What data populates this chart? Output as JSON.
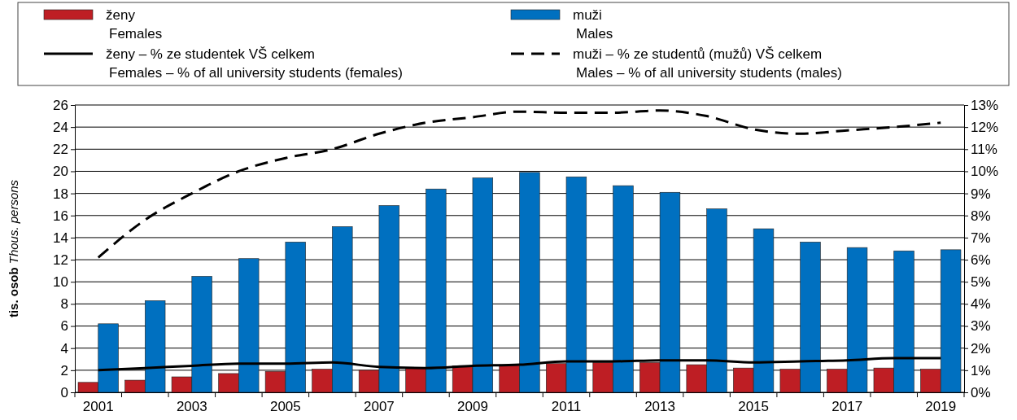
{
  "chart_data": {
    "type": "bar",
    "ylabel": "tis. osob\nThous. persons",
    "categories": [
      "2001",
      null,
      "2003",
      null,
      "2005",
      null,
      "2007",
      null,
      "2009",
      null,
      "2011",
      null,
      "2013",
      null,
      "2015",
      null,
      "2017",
      null,
      "2019"
    ],
    "series": [
      {
        "name": "ženy\nFemales",
        "color": "#be1e24",
        "values": [
          0.9,
          1.1,
          1.4,
          1.7,
          1.9,
          2.1,
          2.0,
          2.2,
          2.4,
          2.5,
          2.6,
          2.7,
          2.7,
          2.5,
          2.2,
          2.1,
          2.1,
          2.2,
          2.1
        ]
      },
      {
        "name": "muži\nMales",
        "color": "#0070c0",
        "values": [
          6.2,
          8.3,
          10.5,
          12.1,
          13.6,
          15.0,
          16.9,
          18.4,
          19.4,
          19.9,
          19.5,
          18.7,
          18.1,
          16.6,
          14.8,
          13.6,
          13.1,
          12.8,
          12.9
        ]
      },
      {
        "name": "ženy – % ze studentek VŠ celkem\nFemales – % of all university students (females)",
        "type": "line",
        "axis": "y2",
        "color": "#000000",
        "line_style": "solid",
        "values": [
          1.0,
          1.1,
          1.2,
          1.3,
          1.3,
          1.35,
          1.15,
          1.1,
          1.2,
          1.25,
          1.4,
          1.4,
          1.45,
          1.45,
          1.35,
          1.4,
          1.45,
          1.55,
          1.55
        ]
      },
      {
        "name": "muži – % ze studentů (mužů) VŠ celkem\nMales – % of all university students (males)",
        "type": "line",
        "axis": "y2",
        "color": "#000000",
        "line_style": "dashed",
        "values": [
          6.1,
          7.8,
          9.0,
          10.0,
          10.6,
          11.0,
          11.7,
          12.2,
          12.45,
          12.7,
          12.65,
          12.65,
          12.75,
          12.5,
          11.9,
          11.7,
          11.85,
          12.0,
          12.2
        ]
      }
    ],
    "ylim": [
      0,
      26
    ],
    "yticks": [
      0,
      2,
      4,
      6,
      8,
      10,
      12,
      14,
      16,
      18,
      20,
      22,
      24,
      26
    ],
    "y2lim": [
      0,
      13
    ],
    "y2ticks": [
      {
        "value": 0,
        "label": "0%"
      },
      {
        "value": 1,
        "label": "1%"
      },
      {
        "value": 2,
        "label": "2%"
      },
      {
        "value": 3,
        "label": "3%"
      },
      {
        "value": 4,
        "label": "4%"
      },
      {
        "value": 5,
        "label": "5%"
      },
      {
        "value": 6,
        "label": "6%"
      },
      {
        "value": 7,
        "label": "7%"
      },
      {
        "value": 8,
        "label": "8%"
      },
      {
        "value": 9,
        "label": "9%"
      },
      {
        "value": 10,
        "label": "10%"
      },
      {
        "value": 11,
        "label": "11%"
      },
      {
        "value": 12,
        "label": "12%"
      },
      {
        "value": 13,
        "label": "13%"
      }
    ],
    "grid": "y",
    "legend": "top",
    "marker": "none"
  }
}
